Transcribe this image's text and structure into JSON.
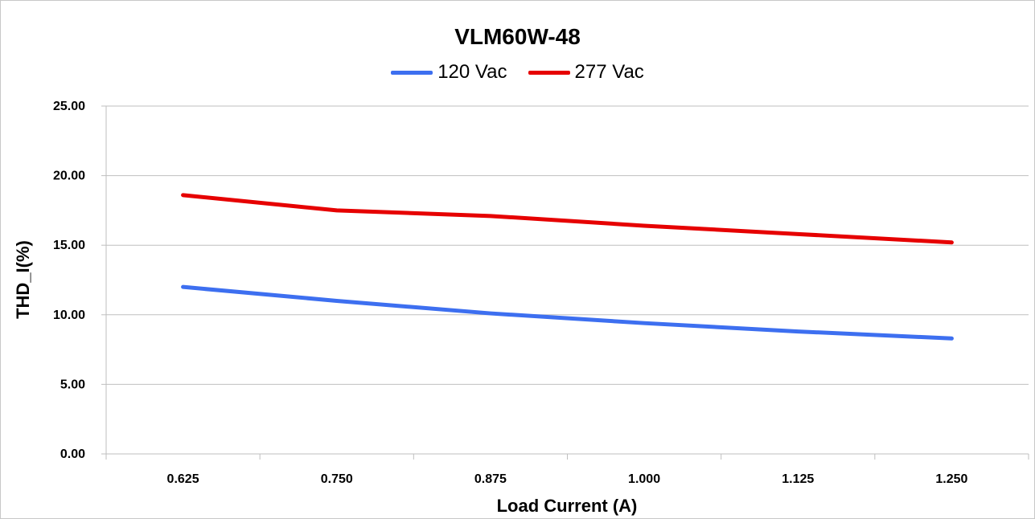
{
  "chart_data": {
    "type": "line",
    "title": "VLM60W-48",
    "xlabel": "Load Current (A)",
    "ylabel": "THD_I(%)",
    "categories": [
      "0.625",
      "0.750",
      "0.875",
      "1.000",
      "1.125",
      "1.250"
    ],
    "ylim": [
      0,
      25
    ],
    "yticks": [
      "0.00",
      "5.00",
      "10.00",
      "15.00",
      "20.00",
      "25.00"
    ],
    "grid": true,
    "legend_position": "top",
    "series": [
      {
        "name": "120 Vac",
        "color": "#3d6ff0",
        "values": [
          12.0,
          11.0,
          10.1,
          9.4,
          8.8,
          8.3
        ]
      },
      {
        "name": "277 Vac",
        "color": "#e60000",
        "values": [
          18.6,
          17.5,
          17.1,
          16.4,
          15.8,
          15.2
        ]
      }
    ]
  }
}
